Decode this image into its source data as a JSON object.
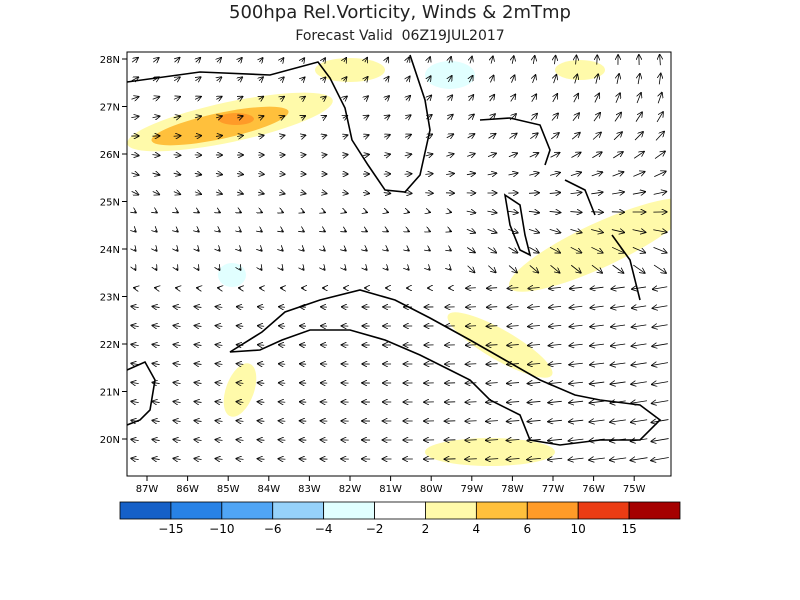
{
  "map": {
    "title": "500hpa Rel.Vorticity, Winds & 2mTmp",
    "subtitle": "Forecast Valid  06Z19JUL2017",
    "lat_labels": [
      "28N",
      "27N",
      "26N",
      "25N",
      "24N",
      "23N",
      "22N",
      "21N",
      "20N"
    ],
    "lon_labels": [
      "87W",
      "86W",
      "85W",
      "84W",
      "83W",
      "82W",
      "81W",
      "80W",
      "79W",
      "78W",
      "77W",
      "76W",
      "75W"
    ],
    "colorbar": {
      "colors": [
        "#1560c8",
        "#2882e6",
        "#50a5f5",
        "#96d2fa",
        "#e1ffff",
        "#ffffff",
        "#fffaaa",
        "#ffc03c",
        "#ff9b28",
        "#eb3c14",
        "#a50000"
      ],
      "labels": [
        "−15",
        "−10",
        "−6",
        "−4",
        "−2",
        "2",
        "4",
        "6",
        "10",
        "15"
      ]
    }
  }
}
